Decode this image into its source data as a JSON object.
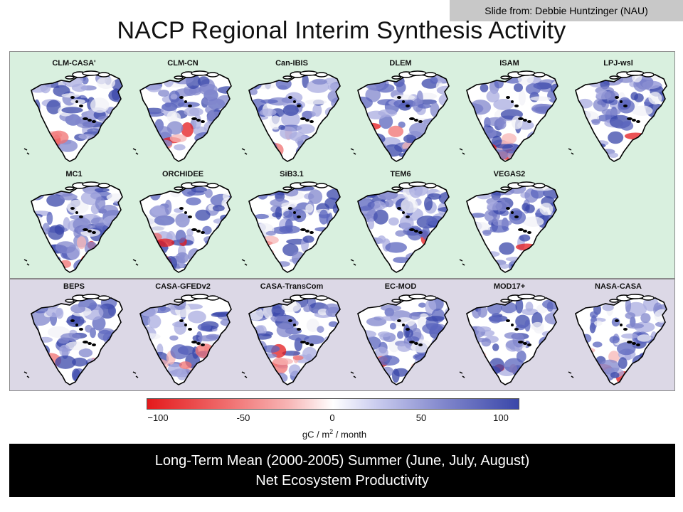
{
  "credit": "Slide from: Debbie Huntzinger (NAU)",
  "title": "NACP Regional Interim Synthesis Activity",
  "top_models_row1": [
    "CLM-CASA'",
    "CLM-CN",
    "Can-IBIS",
    "DLEM",
    "ISAM",
    "LPJ-wsl"
  ],
  "top_models_row2": [
    "MC1",
    "ORCHIDEE",
    "SiB3.1",
    "TEM6",
    "VEGAS2"
  ],
  "bottom_models": [
    "BEPS",
    "CASA-GFEDv2",
    "CASA-TransCom",
    "EC-MOD",
    "MOD17+",
    "NASA-CASA"
  ],
  "colorbar": {
    "ticks": [
      "−100",
      "-50",
      "0",
      "50",
      "100"
    ],
    "unit_prefix": "gC / m",
    "unit_power": "2",
    "unit_suffix": " / month",
    "colors": {
      "min": "#e41a1c",
      "mid": "#ffffff",
      "max": "#3a47a9"
    }
  },
  "caption": {
    "line1": "Long-Term Mean (2000-2005) Summer (June, July, August)",
    "line2": "Net Ecosystem Productivity"
  }
}
